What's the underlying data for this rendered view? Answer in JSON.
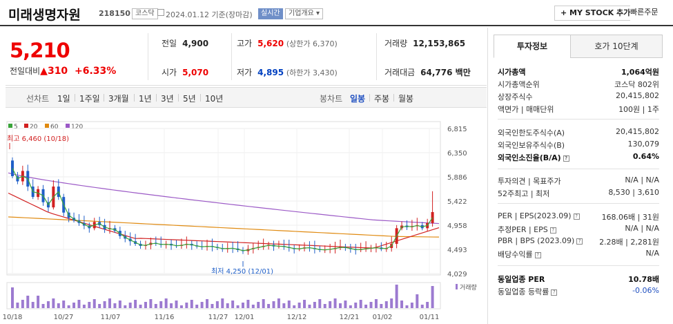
{
  "header": {
    "name": "미래생명자원",
    "code": "218150",
    "market": "코스닥",
    "date": "2024.01.12 기준(장마감)",
    "realtime": "실시간",
    "overview": "기업개요 ▾",
    "my_stock": "+ MY STOCK 추가",
    "quick_order": "빠른주문"
  },
  "summary": {
    "price": "5,210",
    "change_label": "전일대비",
    "change_arrow": "▲",
    "change_value": "310",
    "change_pct": "+6.33%",
    "prev_label": "전일",
    "prev": "4,900",
    "high_label": "고가",
    "high": "5,620",
    "high_limit": "(상한가 6,370)",
    "volume_label": "거래량",
    "volume": "12,153,865",
    "open_label": "시가",
    "open": "5,070",
    "low_label": "저가",
    "low": "4,895",
    "low_limit": "(하한가 3,430)",
    "amount_label": "거래대금",
    "amount": "64,776 백만"
  },
  "toolbar": {
    "line_label": "선차트",
    "periods": [
      "1일",
      "1주일",
      "3개월",
      "1년",
      "3년",
      "5년",
      "10년"
    ],
    "candle_label": "봉차트",
    "candles": [
      "일봉",
      "주봉",
      "월봉"
    ],
    "active_candle": "일봉"
  },
  "chart_data": {
    "type": "candlestick",
    "legend": [
      "5",
      "20",
      "60",
      "120"
    ],
    "legend_colors": [
      "#3aa43a",
      "#d22020",
      "#e08a10",
      "#9b59c6"
    ],
    "y_ticks": [
      6815,
      6350,
      5886,
      5422,
      4958,
      4493,
      4029
    ],
    "x_ticks": [
      "10/18",
      "10/27",
      "11/07",
      "11/16",
      "11/27",
      "12/01",
      "12/12",
      "12/21",
      "01/02",
      "01/11"
    ],
    "high_label": "최고 6,460 (10/18)",
    "low_label": "최저 4,250 (12/01)",
    "volume_label": "거래량",
    "up_color": "#d22020",
    "down_color": "#1f5fc8"
  },
  "panel": {
    "tab_invest": "투자정보",
    "tab_quote": "호가 10단계",
    "rows": [
      {
        "k": "시가총액",
        "v": "1,064억원",
        "bold": true
      },
      {
        "k": "시가총액순위",
        "v": "코스닥 802위"
      },
      {
        "k": "상장주식수",
        "v": "20,415,802"
      },
      {
        "k": "액면가 | 매매단위",
        "v": "100원 | 1주"
      },
      {
        "k": "외국인한도주식수(A)",
        "v": "20,415,802"
      },
      {
        "k": "외국인보유주식수(B)",
        "v": "130,079"
      },
      {
        "k": "외국인소진율(B/A)",
        "v": "0.64%",
        "bold": true
      },
      {
        "k": "투자의견 | 목표주가",
        "v": "N/A | N/A"
      },
      {
        "k": "52주최고 | 최저",
        "v": "8,530 | 3,610"
      },
      {
        "k": "PER | EPS(2023.09)",
        "v": "168.06배 | 31원"
      },
      {
        "k": "추정PER | EPS",
        "v": "N/A | N/A"
      },
      {
        "k": "PBR | BPS (2023.09)",
        "v": "2.28배 | 2,281원"
      },
      {
        "k": "배당수익률",
        "v": "N/A"
      },
      {
        "k": "동일업종 PER",
        "v": "10.78배",
        "bold": true
      },
      {
        "k": "동일업종 등락률",
        "v": "-0.06%"
      }
    ]
  }
}
